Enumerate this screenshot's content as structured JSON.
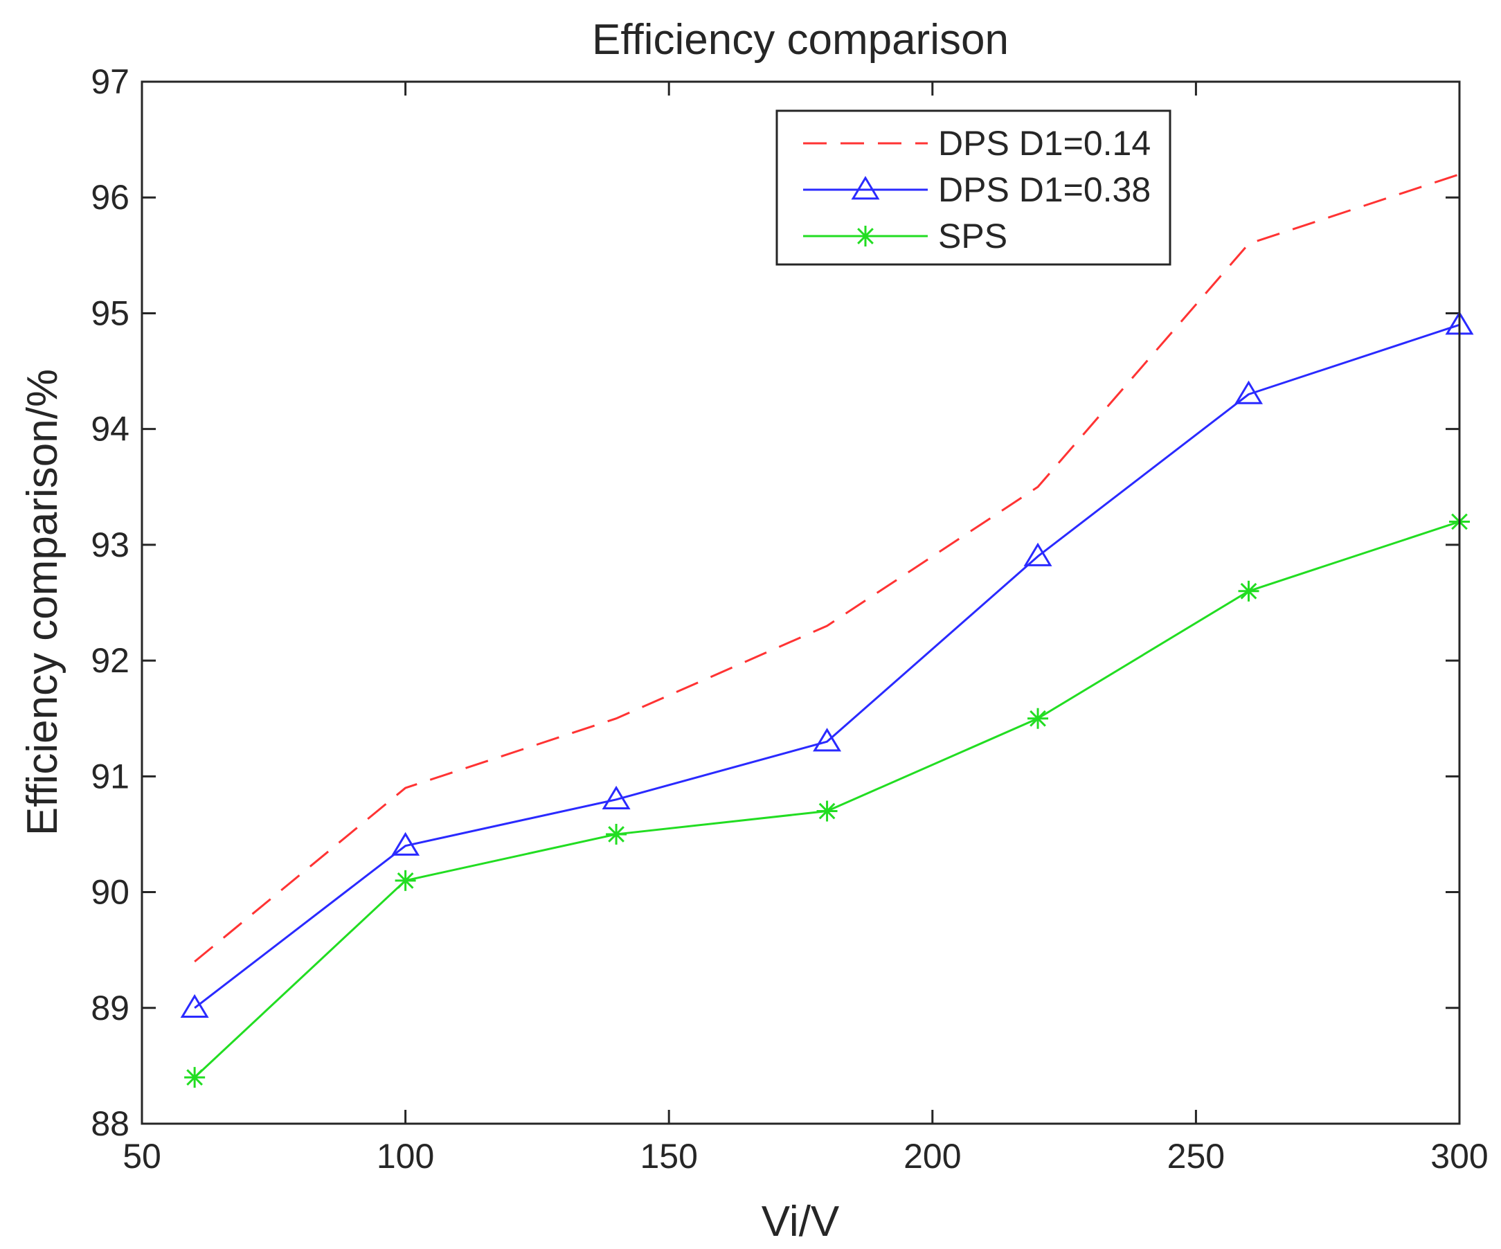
{
  "chart_data": {
    "type": "line",
    "title": "Efficiency comparison",
    "xlabel": "Vi/V",
    "ylabel": "Efficiency comparison/%",
    "xlim": [
      50,
      300
    ],
    "ylim": [
      88,
      97
    ],
    "xticks": [
      50,
      100,
      150,
      200,
      250,
      300
    ],
    "yticks": [
      88,
      89,
      90,
      91,
      92,
      93,
      94,
      95,
      96,
      97
    ],
    "x": [
      60,
      100,
      140,
      180,
      220,
      260,
      300
    ],
    "grid": false,
    "legend_position": "top-right",
    "series": [
      {
        "name": "DPS D1=0.14",
        "color": "#ff3333",
        "style": "dashed",
        "marker": "none",
        "values": [
          89.4,
          90.9,
          91.5,
          92.3,
          93.5,
          95.6,
          96.2
        ]
      },
      {
        "name": "DPS D1=0.38",
        "color": "#2a2aff",
        "style": "solid",
        "marker": "triangle",
        "values": [
          89.0,
          90.4,
          90.8,
          91.3,
          92.9,
          94.3,
          94.9
        ]
      },
      {
        "name": "SPS",
        "color": "#22dd22",
        "style": "solid",
        "marker": "asterisk",
        "values": [
          88.4,
          90.1,
          90.5,
          90.7,
          91.5,
          92.6,
          93.2
        ]
      }
    ]
  }
}
